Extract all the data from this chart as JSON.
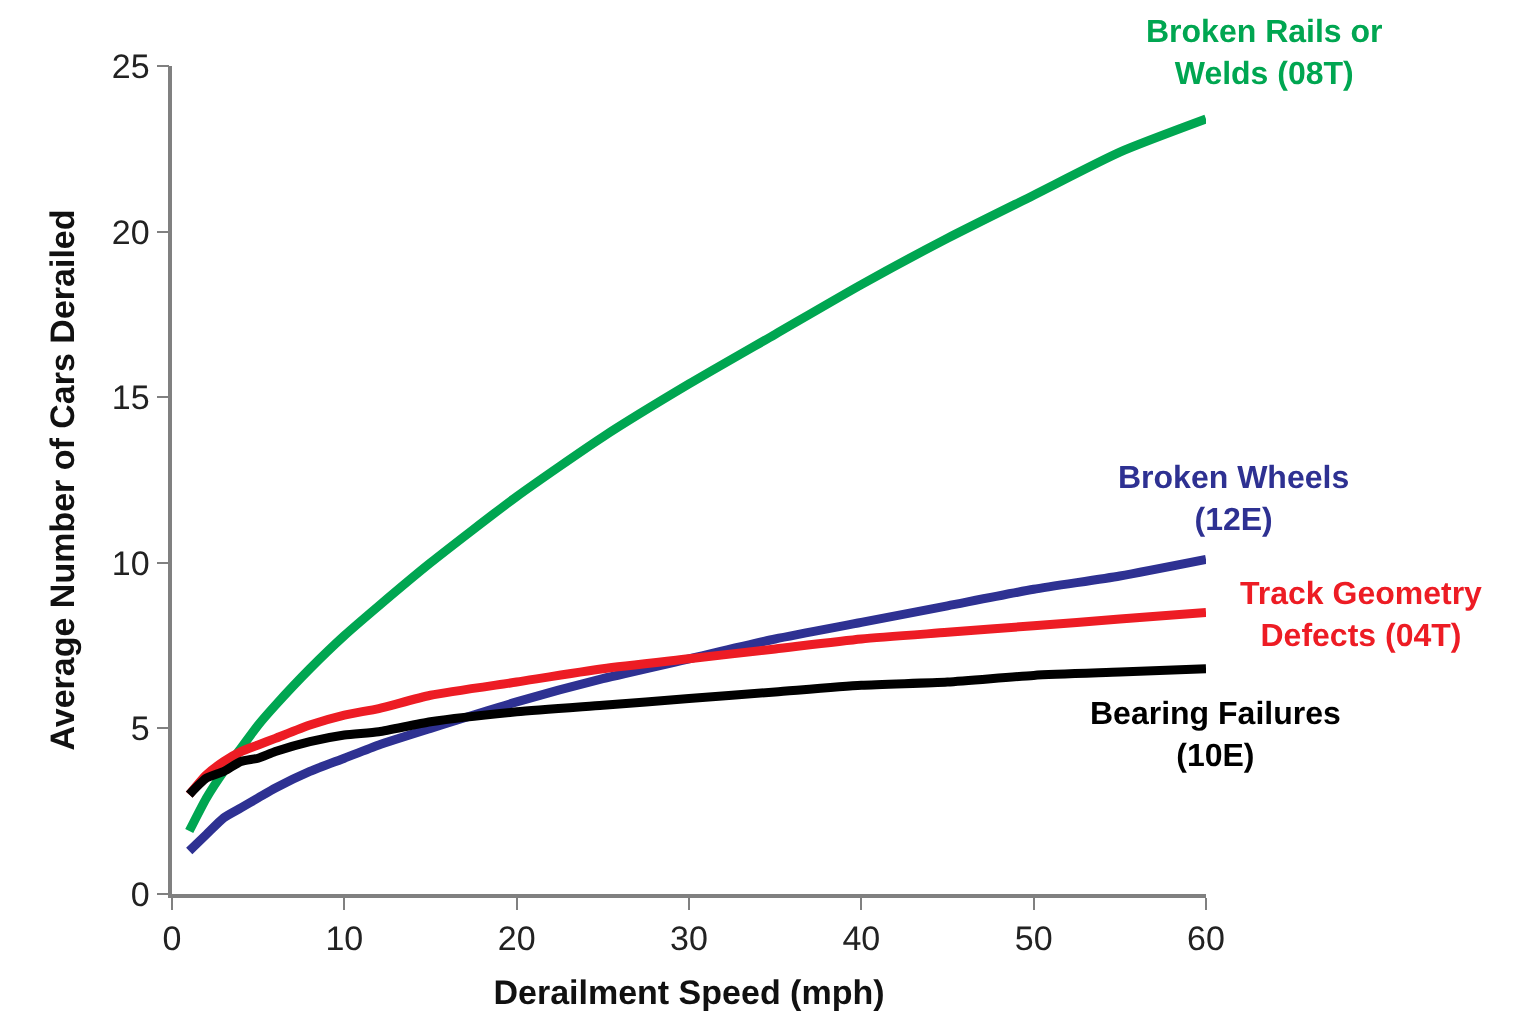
{
  "chart_data": {
    "type": "line",
    "xlabel": "Derailment Speed (mph)",
    "ylabel": "Average Number of Cars Derailed",
    "x": [
      1,
      2,
      3,
      4,
      5,
      6,
      8,
      10,
      12,
      15,
      20,
      25,
      30,
      35,
      40,
      45,
      50,
      55,
      60
    ],
    "series": [
      {
        "name": "Broken Rails or\nWelds (08T)",
        "color": "#00a651",
        "values": [
          1.9,
          2.9,
          3.7,
          4.4,
          5.1,
          5.7,
          6.8,
          7.8,
          8.7,
          10.0,
          12.0,
          13.8,
          15.4,
          16.9,
          18.4,
          19.8,
          21.1,
          22.4,
          23.4
        ]
      },
      {
        "name": "Broken Wheels\n(12E)",
        "color": "#2e3192",
        "values": [
          1.3,
          1.8,
          2.3,
          2.6,
          2.9,
          3.2,
          3.7,
          4.1,
          4.5,
          5.0,
          5.8,
          6.5,
          7.1,
          7.7,
          8.2,
          8.7,
          9.2,
          9.6,
          10.1
        ]
      },
      {
        "name": "Track Geometry\nDefects (04T)",
        "color": "#ed1c24",
        "values": [
          3.0,
          3.6,
          4.0,
          4.3,
          4.5,
          4.7,
          5.1,
          5.4,
          5.6,
          6.0,
          6.4,
          6.8,
          7.1,
          7.4,
          7.7,
          7.9,
          8.1,
          8.3,
          8.5
        ]
      },
      {
        "name": "Bearing Failures\n(10E)",
        "color": "#000000",
        "values": [
          3.0,
          3.5,
          3.7,
          4.0,
          4.1,
          4.3,
          4.6,
          4.8,
          4.9,
          5.2,
          5.5,
          5.7,
          5.9,
          6.1,
          6.3,
          6.4,
          6.6,
          6.7,
          6.8
        ]
      }
    ],
    "xlim": [
      0,
      60
    ],
    "xticks": [
      0,
      10,
      20,
      30,
      40,
      50,
      60
    ],
    "ylim": [
      0,
      25
    ],
    "yticks": [
      0,
      5,
      10,
      15,
      20,
      25
    ],
    "grid": false,
    "legend": false,
    "marker": "none",
    "line_style": "solid"
  }
}
